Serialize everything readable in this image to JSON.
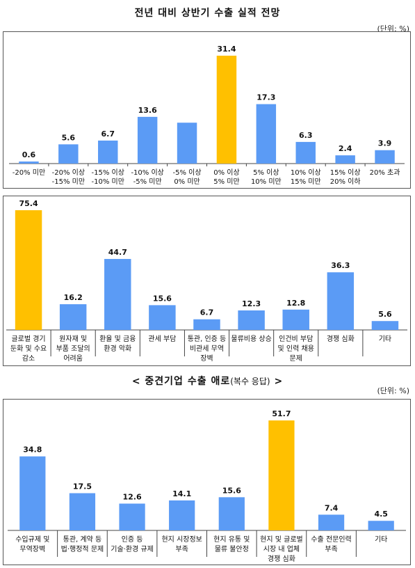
{
  "page": {
    "title": "전년 대비 상반기 수출 실적 전망",
    "unit1": "(단위: %)",
    "subtitle_main": "중견기업 수출 애로",
    "subtitle_paren": "(복수 응답)",
    "subtitle_left": "<",
    "subtitle_right": ">",
    "unit3": "(단위: %)"
  },
  "colors": {
    "bar": "#5B9BF5",
    "highlight": "#FFC000",
    "axis": "#444444"
  },
  "chart_data": [
    {
      "type": "bar",
      "title": "전년 대비 상반기 수출 실적 전망",
      "ylabel": "(단위: %)",
      "ylim": [
        0,
        31.4
      ],
      "categories": [
        [
          "-20% 미만"
        ],
        [
          "-20% 이상",
          "-15% 미만"
        ],
        [
          "-15% 이상",
          "-10% 미만"
        ],
        [
          "-10% 이상",
          "-5% 미만"
        ],
        [
          "-5% 이상",
          "0% 미만"
        ],
        [
          "0% 이상",
          "5% 미만"
        ],
        [
          "5% 이상",
          "10% 미만"
        ],
        [
          "10% 이상",
          "15% 미만"
        ],
        [
          "15% 이상",
          "20% 이하"
        ],
        [
          "20% 초과"
        ]
      ],
      "values": [
        0.6,
        5.6,
        6.7,
        13.6,
        11.9,
        31.4,
        17.3,
        6.3,
        2.4,
        3.9
      ],
      "labels": [
        "0.6",
        "5.6",
        "6.7",
        "13.6",
        "",
        "31.4",
        "17.3",
        "6.3",
        "2.4",
        "3.9"
      ],
      "highlight": [
        5
      ]
    },
    {
      "type": "bar",
      "ylim": [
        0,
        75.4
      ],
      "categories": [
        [
          "글로벌 경기",
          "둔화 및 수요",
          "감소"
        ],
        [
          "원자재 및",
          "부품 조달의",
          "어려움"
        ],
        [
          "환율 및 금융",
          "환경 악화"
        ],
        [
          "관세 부담"
        ],
        [
          "통관, 인증 등",
          "비관세 무역",
          "장벽"
        ],
        [
          "물류비용 상승"
        ],
        [
          "인건비 부담",
          "및 인력 채용",
          "문제"
        ],
        [
          "경쟁 심화"
        ],
        [
          "기타"
        ]
      ],
      "values": [
        75.4,
        16.2,
        44.7,
        15.6,
        6.7,
        12.3,
        12.8,
        36.3,
        5.6
      ],
      "labels": [
        "75.4",
        "16.2",
        "44.7",
        "15.6",
        "6.7",
        "12.3",
        "12.8",
        "36.3",
        "5.6"
      ],
      "highlight": [
        0
      ]
    },
    {
      "type": "bar",
      "title": "중견기업 수출 애로(복수 응답)",
      "ylabel": "(단위: %)",
      "ylim": [
        0,
        51.7
      ],
      "categories": [
        [
          "수입규제 및",
          "무역장벽"
        ],
        [
          "통관, 계약 등",
          "법·행정적 문제"
        ],
        [
          "인증 등",
          "기술·환경 규제"
        ],
        [
          "현지 시장정보",
          "부족"
        ],
        [
          "현지 유통 및",
          "물류 불안정"
        ],
        [
          "현지 및 글로벌",
          "시장 내 업체",
          "경쟁 심화"
        ],
        [
          "수출 전문인력",
          "부족"
        ],
        [
          "기타"
        ]
      ],
      "values": [
        34.8,
        17.5,
        12.6,
        14.1,
        15.6,
        51.7,
        7.4,
        4.5
      ],
      "labels": [
        "34.8",
        "17.5",
        "12.6",
        "14.1",
        "15.6",
        "51.7",
        "7.4",
        "4.5"
      ],
      "highlight": [
        5
      ]
    }
  ]
}
